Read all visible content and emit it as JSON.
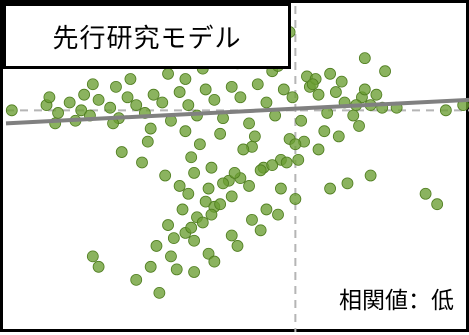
{
  "chart_data": {
    "type": "scatter",
    "title": "先行研究モデル",
    "annotation": "相関値：低",
    "xlabel": "",
    "ylabel": "",
    "grid": false,
    "xlim": [
      -1,
      0.6
    ],
    "ylim": [
      -0.85,
      0.4
    ],
    "reference_lines": {
      "x": 0,
      "y": 0
    },
    "trendline": {
      "x": [
        -1,
        0.6
      ],
      "y": [
        -0.05,
        0.04
      ]
    },
    "colors": {
      "points": "#6a9e32",
      "point_edge": "#4f7d1f",
      "trendline": "#808080",
      "reference": "#b5b5b5"
    },
    "series": [
      {
        "x": [
          -0.98,
          -0.86,
          -0.82,
          -0.78,
          -0.74,
          -0.71,
          -0.68,
          -0.64,
          -0.61,
          -0.58,
          -0.55,
          -0.52,
          -0.49,
          -0.46,
          -0.43,
          -0.4,
          -0.37,
          -0.34,
          -0.31,
          -0.28,
          -0.25,
          -0.22,
          -0.19,
          -0.16,
          -0.13,
          -0.1,
          -0.07,
          -0.04,
          -0.01,
          0.02,
          0.05,
          0.08,
          0.11,
          0.14,
          0.17,
          0.2,
          0.23,
          0.26,
          0.3,
          0.35,
          -0.85,
          -0.76,
          -0.7,
          -0.63,
          -0.57,
          -0.5,
          -0.44,
          -0.38,
          -0.32,
          -0.26,
          -0.2,
          -0.14,
          -0.08,
          -0.02,
          0.04,
          0.1,
          0.16,
          0.22,
          0.28,
          -0.83,
          -0.73,
          -0.62,
          -0.51,
          -0.42,
          -0.33,
          -0.24,
          -0.15,
          -0.06,
          0.03,
          0.12,
          0.21,
          0.31,
          -0.6,
          -0.48,
          -0.36,
          -0.27,
          -0.18,
          -0.09,
          0.0,
          0.07,
          0.15,
          0.24,
          -0.53,
          -0.41,
          -0.29,
          -0.17,
          -0.05,
          0.06,
          -0.45,
          -0.35,
          -0.23,
          -0.11,
          0.01,
          -0.4,
          -0.3,
          -0.19,
          -0.08,
          -0.37,
          -0.31,
          -0.25,
          -0.21,
          -0.12,
          -0.03,
          0.08,
          -0.39,
          -0.34,
          -0.28,
          -0.22,
          -0.16,
          -0.44,
          -0.38,
          -0.32,
          -0.26,
          -0.48,
          -0.42,
          -0.36,
          -0.29,
          -0.5,
          -0.43,
          -0.35,
          -0.7,
          -0.68,
          -0.55,
          -0.47,
          -0.41,
          -0.3,
          -0.22,
          -0.15,
          -0.1,
          -0.05,
          -0.35,
          -0.28,
          -0.2,
          -0.12,
          -0.06,
          0.0,
          0.12,
          0.18,
          0.26,
          -0.02,
          -0.06,
          0.24,
          -0.38,
          0.45,
          0.49,
          0.52,
          0.58
        ],
        "y": [
          0.0,
          0.02,
          -0.01,
          0.03,
          0.0,
          -0.02,
          0.04,
          0.01,
          -0.03,
          0.05,
          0.02,
          -0.01,
          0.06,
          0.03,
          -0.04,
          0.07,
          0.02,
          -0.02,
          0.08,
          0.04,
          -0.03,
          0.09,
          0.05,
          -0.05,
          0.1,
          0.03,
          -0.02,
          0.08,
          0.05,
          -0.04,
          0.09,
          0.06,
          -0.01,
          0.07,
          0.03,
          -0.02,
          0.05,
          0.02,
          0.01,
          0.01,
          0.05,
          -0.04,
          0.1,
          -0.05,
          0.12,
          -0.07,
          0.14,
          -0.08,
          0.16,
          -0.09,
          0.18,
          -0.1,
          0.15,
          -0.11,
          0.13,
          -0.08,
          0.11,
          -0.06,
          0.06,
          -0.05,
          0.06,
          0.09,
          -0.12,
          0.19,
          -0.13,
          0.2,
          -0.14,
          0.17,
          -0.12,
          0.14,
          0.02,
          0.15,
          -0.16,
          0.22,
          -0.18,
          0.24,
          -0.15,
          0.21,
          -0.13,
          0.12,
          -0.1,
          0.08,
          -0.2,
          0.23,
          -0.22,
          0.25,
          -0.19,
          0.1,
          -0.25,
          -0.24,
          -0.27,
          -0.22,
          -0.19,
          -0.29,
          -0.3,
          -0.26,
          -0.21,
          -0.32,
          -0.35,
          -0.28,
          -0.24,
          -0.23,
          -0.2,
          -0.15,
          -0.38,
          -0.41,
          -0.37,
          -0.33,
          -0.29,
          -0.44,
          -0.47,
          -0.43,
          -0.36,
          -0.52,
          -0.49,
          -0.45,
          -0.4,
          -0.6,
          -0.56,
          -0.5,
          -0.56,
          -0.6,
          -0.65,
          -0.7,
          -0.61,
          -0.55,
          -0.48,
          -0.42,
          -0.38,
          -0.3,
          -0.62,
          -0.58,
          -0.52,
          -0.46,
          -0.4,
          -0.34,
          -0.3,
          -0.28,
          -0.25,
          0.3,
          0.26,
          0.2,
          0.12,
          -0.32,
          -0.36,
          0.0,
          0.02
        ]
      }
    ]
  }
}
